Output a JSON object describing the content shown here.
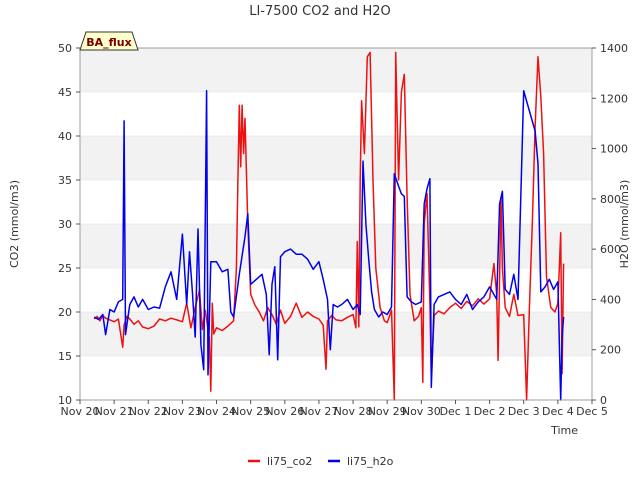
{
  "chart_data": {
    "type": "line",
    "title": "LI-7500 CO2 and H2O",
    "xlabel": "Time",
    "ylabel_left": "CO2 (mmol/m3)",
    "ylabel_right": "H2O (mmol/m3)",
    "badge": "BA_flux",
    "x_range": [
      "2023-11-20",
      "2023-12-05"
    ],
    "x_ticks": [
      "Nov 20",
      "Nov 21",
      "Nov 22",
      "Nov 23",
      "Nov 24",
      "Nov 25",
      "Nov 26",
      "Nov 27",
      "Nov 28",
      "Nov 29",
      "Nov 30",
      "Dec 1",
      "Dec 2",
      "Dec 3",
      "Dec 4",
      "Dec 5"
    ],
    "y_left_range": [
      10,
      50
    ],
    "y_left_ticks": [
      10,
      15,
      20,
      25,
      30,
      35,
      40,
      45,
      50
    ],
    "y_right_range": [
      0,
      1400
    ],
    "y_right_ticks": [
      0,
      200,
      400,
      600,
      800,
      1000,
      1200,
      1400
    ],
    "grid": true,
    "legend_position": "bottom",
    "series": [
      {
        "name": "li75_co2",
        "axis": "left",
        "color": "#ee1111",
        "points": [
          [
            "2023-11-20 10:00",
            19.2
          ],
          [
            "2023-11-20 12:00",
            19.5
          ],
          [
            "2023-11-20 14:00",
            19.0
          ],
          [
            "2023-11-20 16:00",
            19.6
          ],
          [
            "2023-11-20 18:00",
            19.3
          ],
          [
            "2023-11-20 21:00",
            19.1
          ],
          [
            "2023-11-21 00:00",
            18.9
          ],
          [
            "2023-11-21 03:00",
            19.2
          ],
          [
            "2023-11-21 06:00",
            16.0
          ],
          [
            "2023-11-21 07:00",
            18.5
          ],
          [
            "2023-11-21 09:00",
            19.5
          ],
          [
            "2023-11-21 11:00",
            19.2
          ],
          [
            "2023-11-21 14:00",
            18.6
          ],
          [
            "2023-11-21 17:00",
            19.0
          ],
          [
            "2023-11-21 20:00",
            18.3
          ],
          [
            "2023-11-22 00:00",
            18.1
          ],
          [
            "2023-11-22 04:00",
            18.4
          ],
          [
            "2023-11-22 08:00",
            19.2
          ],
          [
            "2023-11-22 12:00",
            19.0
          ],
          [
            "2023-11-22 16:00",
            19.3
          ],
          [
            "2023-11-22 20:00",
            19.1
          ],
          [
            "2023-11-23 00:00",
            18.9
          ],
          [
            "2023-11-23 03:00",
            21.0
          ],
          [
            "2023-11-23 06:00",
            18.2
          ],
          [
            "2023-11-23 09:00",
            20.5
          ],
          [
            "2023-11-23 12:00",
            22.5
          ],
          [
            "2023-11-23 14:00",
            18.0
          ],
          [
            "2023-11-23 16:00",
            20.2
          ],
          [
            "2023-11-23 19:00",
            17.0
          ],
          [
            "2023-11-23 20:00",
            11.0
          ],
          [
            "2023-11-23 21:00",
            21.0
          ],
          [
            "2023-11-23 22:00",
            17.5
          ],
          [
            "2023-11-24 00:00",
            18.2
          ],
          [
            "2023-11-24 04:00",
            17.9
          ],
          [
            "2023-11-24 08:00",
            18.4
          ],
          [
            "2023-11-24 12:00",
            19.0
          ],
          [
            "2023-11-24 14:00",
            25.0
          ],
          [
            "2023-11-24 15:00",
            35.0
          ],
          [
            "2023-11-24 16:00",
            43.5
          ],
          [
            "2023-11-24 17:00",
            36.5
          ],
          [
            "2023-11-24 18:00",
            43.5
          ],
          [
            "2023-11-24 19:00",
            38.0
          ],
          [
            "2023-11-24 20:00",
            42.0
          ],
          [
            "2023-11-24 22:00",
            30.0
          ],
          [
            "2023-11-25 00:00",
            22.0
          ],
          [
            "2023-11-25 03:00",
            20.8
          ],
          [
            "2023-11-25 06:00",
            20.0
          ],
          [
            "2023-11-25 09:00",
            19.0
          ],
          [
            "2023-11-25 12:00",
            20.5
          ],
          [
            "2023-11-25 15:00",
            19.7
          ],
          [
            "2023-11-25 18:00",
            18.6
          ],
          [
            "2023-11-25 21:00",
            20.2
          ],
          [
            "2023-11-26 00:00",
            18.7
          ],
          [
            "2023-11-26 04:00",
            19.5
          ],
          [
            "2023-11-26 08:00",
            21.0
          ],
          [
            "2023-11-26 12:00",
            19.4
          ],
          [
            "2023-11-26 16:00",
            20.0
          ],
          [
            "2023-11-26 20:00",
            19.5
          ],
          [
            "2023-11-27 00:00",
            19.2
          ],
          [
            "2023-11-27 03:00",
            18.5
          ],
          [
            "2023-11-27 05:00",
            13.5
          ],
          [
            "2023-11-27 06:00",
            19.0
          ],
          [
            "2023-11-27 09:00",
            19.6
          ],
          [
            "2023-11-27 12:00",
            19.1
          ],
          [
            "2023-11-27 16:00",
            19.0
          ],
          [
            "2023-11-27 20:00",
            19.4
          ],
          [
            "2023-11-28 00:00",
            19.7
          ],
          [
            "2023-11-28 02:00",
            18.2
          ],
          [
            "2023-11-28 03:00",
            28.0
          ],
          [
            "2023-11-28 04:00",
            18.3
          ],
          [
            "2023-11-28 05:00",
            35.0
          ],
          [
            "2023-11-28 06:00",
            44.0
          ],
          [
            "2023-11-28 08:00",
            38.0
          ],
          [
            "2023-11-28 10:00",
            49.0
          ],
          [
            "2023-11-28 12:00",
            49.5
          ],
          [
            "2023-11-28 14:00",
            35.0
          ],
          [
            "2023-11-28 16:00",
            25.0
          ],
          [
            "2023-11-28 19:00",
            20.5
          ],
          [
            "2023-11-28 22:00",
            19.0
          ],
          [
            "2023-11-29 00:00",
            18.8
          ],
          [
            "2023-11-29 03:00",
            20.2
          ],
          [
            "2023-11-29 05:00",
            10.0
          ],
          [
            "2023-11-29 06:00",
            49.5
          ],
          [
            "2023-11-29 08:00",
            35.0
          ],
          [
            "2023-11-29 10:00",
            45.0
          ],
          [
            "2023-11-29 12:00",
            47.0
          ],
          [
            "2023-11-29 14:00",
            33.0
          ],
          [
            "2023-11-29 16:00",
            22.0
          ],
          [
            "2023-11-29 19:00",
            19.0
          ],
          [
            "2023-11-29 22:00",
            19.5
          ],
          [
            "2023-11-30 00:00",
            20.5
          ],
          [
            "2023-11-30 01:00",
            12.0
          ],
          [
            "2023-11-30 02:00",
            30.0
          ],
          [
            "2023-11-30 04:00",
            33.5
          ],
          [
            "2023-11-30 06:00",
            21.0
          ],
          [
            "2023-11-30 07:00",
            12.5
          ],
          [
            "2023-11-30 09:00",
            19.6
          ],
          [
            "2023-11-30 12:00",
            20.1
          ],
          [
            "2023-11-30 16:00",
            19.8
          ],
          [
            "2023-11-30 20:00",
            20.5
          ],
          [
            "2023-12-01 00:00",
            21.0
          ],
          [
            "2023-12-01 04:00",
            20.4
          ],
          [
            "2023-12-01 08:00",
            21.2
          ],
          [
            "2023-12-01 12:00",
            20.7
          ],
          [
            "2023-12-01 16:00",
            21.5
          ],
          [
            "2023-12-01 20:00",
            20.9
          ],
          [
            "2023-12-02 00:00",
            21.5
          ],
          [
            "2023-12-02 03:00",
            25.5
          ],
          [
            "2023-12-02 05:00",
            22.0
          ],
          [
            "2023-12-02 06:00",
            14.5
          ],
          [
            "2023-12-02 08:00",
            33.0
          ],
          [
            "2023-12-02 09:00",
            25.0
          ],
          [
            "2023-12-02 11:00",
            20.5
          ],
          [
            "2023-12-02 14:00",
            19.5
          ],
          [
            "2023-12-02 17:00",
            22.0
          ],
          [
            "2023-12-02 20:00",
            19.6
          ],
          [
            "2023-12-03 00:00",
            19.7
          ],
          [
            "2023-12-03 02:00",
            10.0
          ],
          [
            "2023-12-03 04:00",
            20.5
          ],
          [
            "2023-12-03 06:00",
            30.0
          ],
          [
            "2023-12-03 08:00",
            41.0
          ],
          [
            "2023-12-03 10:00",
            49.0
          ],
          [
            "2023-12-03 12:00",
            44.5
          ],
          [
            "2023-12-03 14:00",
            38.0
          ],
          [
            "2023-12-03 16:00",
            24.0
          ],
          [
            "2023-12-03 19:00",
            20.5
          ],
          [
            "2023-12-03 22:00",
            20.0
          ],
          [
            "2023-12-04 00:00",
            21.0
          ],
          [
            "2023-12-04 02:00",
            29.0
          ],
          [
            "2023-12-04 03:00",
            13.0
          ],
          [
            "2023-12-04 04:00",
            25.5
          ]
        ]
      },
      {
        "name": "li75_h2o",
        "axis": "right",
        "color": "#0000ee",
        "points": [
          [
            "2023-11-20 10:00",
            330
          ],
          [
            "2023-11-20 13:00",
            320
          ],
          [
            "2023-11-20 16:00",
            340
          ],
          [
            "2023-11-20 18:00",
            260
          ],
          [
            "2023-11-20 21:00",
            360
          ],
          [
            "2023-11-21 00:00",
            350
          ],
          [
            "2023-11-21 03:00",
            390
          ],
          [
            "2023-11-21 06:00",
            400
          ],
          [
            "2023-11-21 07:00",
            1110
          ],
          [
            "2023-11-21 08:00",
            260
          ],
          [
            "2023-11-21 11:00",
            380
          ],
          [
            "2023-11-21 14:00",
            410
          ],
          [
            "2023-11-21 17:00",
            370
          ],
          [
            "2023-11-21 20:00",
            400
          ],
          [
            "2023-11-22 00:00",
            360
          ],
          [
            "2023-11-22 04:00",
            370
          ],
          [
            "2023-11-22 08:00",
            365
          ],
          [
            "2023-11-22 12:00",
            450
          ],
          [
            "2023-11-22 16:00",
            510
          ],
          [
            "2023-11-22 20:00",
            400
          ],
          [
            "2023-11-23 00:00",
            660
          ],
          [
            "2023-11-23 03:00",
            380
          ],
          [
            "2023-11-23 05:00",
            590
          ],
          [
            "2023-11-23 07:00",
            430
          ],
          [
            "2023-11-23 09:00",
            250
          ],
          [
            "2023-11-23 11:00",
            680
          ],
          [
            "2023-11-23 13:00",
            220
          ],
          [
            "2023-11-23 15:00",
            120
          ],
          [
            "2023-11-23 17:00",
            1230
          ],
          [
            "2023-11-23 18:00",
            100
          ],
          [
            "2023-11-23 20:00",
            550
          ],
          [
            "2023-11-24 00:00",
            550
          ],
          [
            "2023-11-24 04:00",
            510
          ],
          [
            "2023-11-24 08:00",
            520
          ],
          [
            "2023-11-24 10:00",
            350
          ],
          [
            "2023-11-24 12:00",
            330
          ],
          [
            "2023-11-24 16:00",
            500
          ],
          [
            "2023-11-24 20:00",
            650
          ],
          [
            "2023-11-24 22:00",
            740
          ],
          [
            "2023-11-25 00:00",
            460
          ],
          [
            "2023-11-25 04:00",
            480
          ],
          [
            "2023-11-25 08:00",
            500
          ],
          [
            "2023-11-25 11:00",
            420
          ],
          [
            "2023-11-25 13:00",
            180
          ],
          [
            "2023-11-25 15:00",
            460
          ],
          [
            "2023-11-25 17:00",
            530
          ],
          [
            "2023-11-25 19:00",
            160
          ],
          [
            "2023-11-25 21:00",
            570
          ],
          [
            "2023-11-26 00:00",
            590
          ],
          [
            "2023-11-26 04:00",
            600
          ],
          [
            "2023-11-26 08:00",
            580
          ],
          [
            "2023-11-26 12:00",
            580
          ],
          [
            "2023-11-26 16:00",
            560
          ],
          [
            "2023-11-26 20:00",
            520
          ],
          [
            "2023-11-27 00:00",
            550
          ],
          [
            "2023-11-27 03:00",
            480
          ],
          [
            "2023-11-27 06:00",
            400
          ],
          [
            "2023-11-27 08:00",
            200
          ],
          [
            "2023-11-27 10:00",
            380
          ],
          [
            "2023-11-27 13:00",
            370
          ],
          [
            "2023-11-27 16:00",
            380
          ],
          [
            "2023-11-27 20:00",
            400
          ],
          [
            "2023-11-28 00:00",
            360
          ],
          [
            "2023-11-28 03:00",
            380
          ],
          [
            "2023-11-28 05:00",
            340
          ],
          [
            "2023-11-28 07:00",
            950
          ],
          [
            "2023-11-28 09:00",
            700
          ],
          [
            "2023-11-28 11:00",
            560
          ],
          [
            "2023-11-28 13:00",
            430
          ],
          [
            "2023-11-28 15:00",
            360
          ],
          [
            "2023-11-28 18:00",
            330
          ],
          [
            "2023-11-28 21:00",
            350
          ],
          [
            "2023-11-29 00:00",
            340
          ],
          [
            "2023-11-29 03:00",
            370
          ],
          [
            "2023-11-29 05:00",
            900
          ],
          [
            "2023-11-29 08:00",
            850
          ],
          [
            "2023-11-29 10:00",
            820
          ],
          [
            "2023-11-29 12:00",
            810
          ],
          [
            "2023-11-29 14:00",
            410
          ],
          [
            "2023-11-29 17:00",
            390
          ],
          [
            "2023-11-29 20:00",
            380
          ],
          [
            "2023-11-30 00:00",
            390
          ],
          [
            "2023-11-30 02:00",
            780
          ],
          [
            "2023-11-30 04:00",
            840
          ],
          [
            "2023-11-30 06:00",
            880
          ],
          [
            "2023-11-30 07:00",
            50
          ],
          [
            "2023-11-30 09:00",
            380
          ],
          [
            "2023-11-30 12:00",
            410
          ],
          [
            "2023-11-30 16:00",
            420
          ],
          [
            "2023-11-30 20:00",
            430
          ],
          [
            "2023-12-01 00:00",
            400
          ],
          [
            "2023-12-01 04:00",
            380
          ],
          [
            "2023-12-01 08:00",
            420
          ],
          [
            "2023-12-01 12:00",
            360
          ],
          [
            "2023-12-01 16:00",
            390
          ],
          [
            "2023-12-01 20:00",
            410
          ],
          [
            "2023-12-02 00:00",
            450
          ],
          [
            "2023-12-02 03:00",
            420
          ],
          [
            "2023-12-02 05:00",
            400
          ],
          [
            "2023-12-02 07:00",
            780
          ],
          [
            "2023-12-02 09:00",
            830
          ],
          [
            "2023-12-02 11:00",
            440
          ],
          [
            "2023-12-02 14:00",
            420
          ],
          [
            "2023-12-02 17:00",
            500
          ],
          [
            "2023-12-02 20:00",
            400
          ],
          [
            "2023-12-03 00:00",
            1230
          ],
          [
            "2023-12-03 04:00",
            1150
          ],
          [
            "2023-12-03 08:00",
            1070
          ],
          [
            "2023-12-03 10:00",
            940
          ],
          [
            "2023-12-03 12:00",
            430
          ],
          [
            "2023-12-03 15:00",
            450
          ],
          [
            "2023-12-03 18:00",
            480
          ],
          [
            "2023-12-03 21:00",
            440
          ],
          [
            "2023-12-04 00:00",
            470
          ],
          [
            "2023-12-04 02:00",
            0
          ],
          [
            "2023-12-04 03:00",
            250
          ],
          [
            "2023-12-04 04:00",
            330
          ]
        ]
      }
    ]
  }
}
